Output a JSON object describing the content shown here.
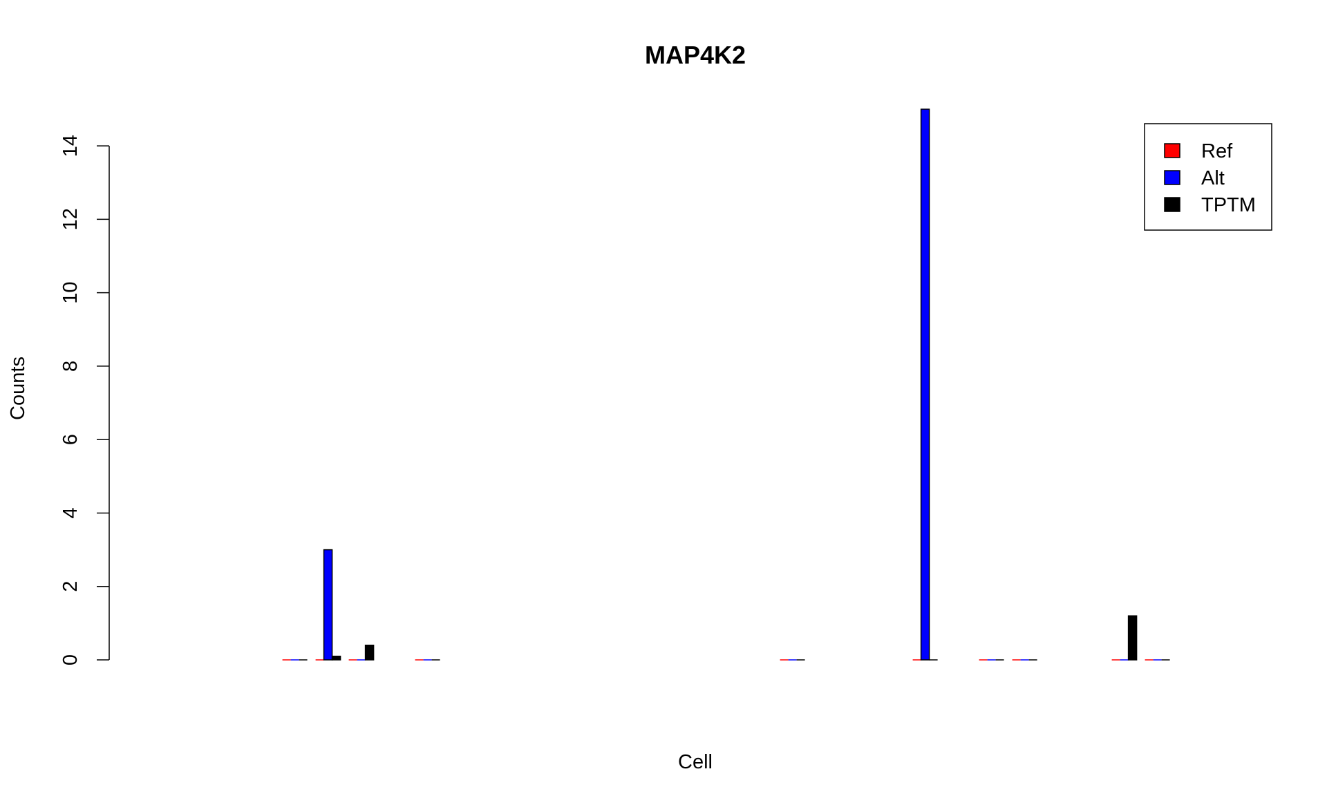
{
  "chart_data": {
    "type": "bar",
    "title": "MAP4K2",
    "xlabel": "Cell",
    "ylabel": "Counts",
    "ylim": [
      0,
      15
    ],
    "yticks": [
      0,
      2,
      4,
      6,
      8,
      10,
      12,
      14
    ],
    "grid": false,
    "legend_position": "top-right",
    "n_groups": 33,
    "series": [
      {
        "name": "Ref",
        "color": "#ff0000"
      },
      {
        "name": "Alt",
        "color": "#0000ff"
      },
      {
        "name": "TPTM",
        "color": "#000000"
      }
    ],
    "groups": [
      {
        "index": 6,
        "values": [
          0,
          0,
          0
        ]
      },
      {
        "index": 7,
        "values": [
          0,
          3,
          0.1
        ]
      },
      {
        "index": 8,
        "values": [
          0,
          0,
          0.4
        ]
      },
      {
        "index": 10,
        "values": [
          0,
          0,
          0
        ]
      },
      {
        "index": 21,
        "values": [
          0,
          0,
          0
        ]
      },
      {
        "index": 25,
        "values": [
          0,
          15,
          0
        ]
      },
      {
        "index": 27,
        "values": [
          0,
          0,
          0
        ]
      },
      {
        "index": 28,
        "values": [
          0,
          0,
          0
        ]
      },
      {
        "index": 31,
        "values": [
          0,
          0,
          1.2
        ]
      },
      {
        "index": 32,
        "values": [
          0,
          0,
          0
        ]
      }
    ]
  }
}
